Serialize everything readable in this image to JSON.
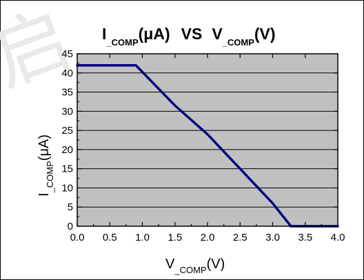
{
  "title": {
    "i_letter": "I",
    "comp": "_COMP",
    "unit_a": "(μA)",
    "vs": "VS",
    "v_letter": "V",
    "comp2": "_COMP",
    "unit_b": "(V)"
  },
  "xlabel": {
    "v_letter": "V",
    "comp": "_COMP",
    "unit": "(V)"
  },
  "ylabel": {
    "i_letter": "I",
    "comp": "_COMP",
    "unit": "(μA)"
  },
  "watermark": "启",
  "colors": {
    "plot_background": "#c0c0c0",
    "series": "#000080",
    "frame": "#000000"
  },
  "chart_data": {
    "type": "line",
    "xlim": [
      0,
      4
    ],
    "ylim": [
      0,
      45
    ],
    "grid": true,
    "x_ticks": [
      "0.0",
      "0.5",
      "1.0",
      "1.5",
      "2.0",
      "2.5",
      "3.0",
      "3.5",
      "4.0"
    ],
    "y_ticks": [
      "0",
      "5",
      "10",
      "15",
      "20",
      "25",
      "30",
      "35",
      "40",
      "45"
    ],
    "series": [
      {
        "points": [
          [
            0.0,
            42
          ],
          [
            0.9,
            42
          ],
          [
            1.5,
            31.5
          ],
          [
            2.0,
            24
          ],
          [
            3.0,
            6
          ],
          [
            3.28,
            0
          ],
          [
            4.0,
            0
          ]
        ]
      }
    ]
  }
}
